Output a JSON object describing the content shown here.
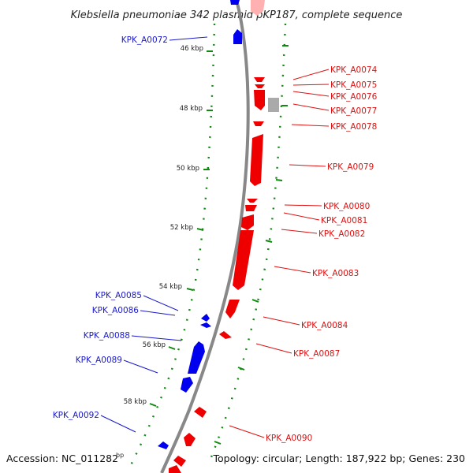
{
  "title": "Klebsiella pneumoniae 342 plasmid pKP187, complete sequence",
  "footer": {
    "accession": "Accession: NC_011282",
    "topology": "Topology: circular; Length: 187,922 bp; Genes: 230",
    "bp_fragment": "bp"
  },
  "colors": {
    "forward_strand": "#0000ee",
    "reverse_strand": "#ee0000",
    "other_feature": "#aaaaaa",
    "backbone": "#888888",
    "tick": "#118811"
  },
  "kbp_ticks": [
    "46 kbp",
    "48 kbp",
    "50 kbp",
    "52 kbp",
    "54 kbp",
    "56 kbp",
    "58 kbp"
  ],
  "genes_forward": [
    "KPK_A0072",
    "KPK_A0085",
    "KPK_A0086",
    "KPK_A0088",
    "KPK_A0089",
    "KPK_A0092"
  ],
  "genes_reverse": [
    "KPK_A0074",
    "KPK_A0075",
    "KPK_A0076",
    "KPK_A0077",
    "KPK_A0078",
    "KPK_A0079",
    "KPK_A0080",
    "KPK_A0081",
    "KPK_A0082",
    "KPK_A0083",
    "KPK_A0084",
    "KPK_A0087",
    "KPK_A0090"
  ]
}
